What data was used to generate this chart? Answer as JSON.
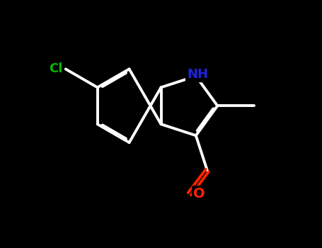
{
  "background_color": "#000000",
  "bond_color": "#ffffff",
  "bond_width": 2.8,
  "atom_colors": {
    "N": "#2222dd",
    "Cl": "#00bb00",
    "O": "#ff2200",
    "C": "#ffffff",
    "H": "#ffffff"
  },
  "BL": 1.15,
  "xlim": [
    0,
    10
  ],
  "ylim": [
    0,
    7.7
  ],
  "figsize": [
    4.55,
    3.5
  ],
  "dpi": 100,
  "font_size": 13
}
